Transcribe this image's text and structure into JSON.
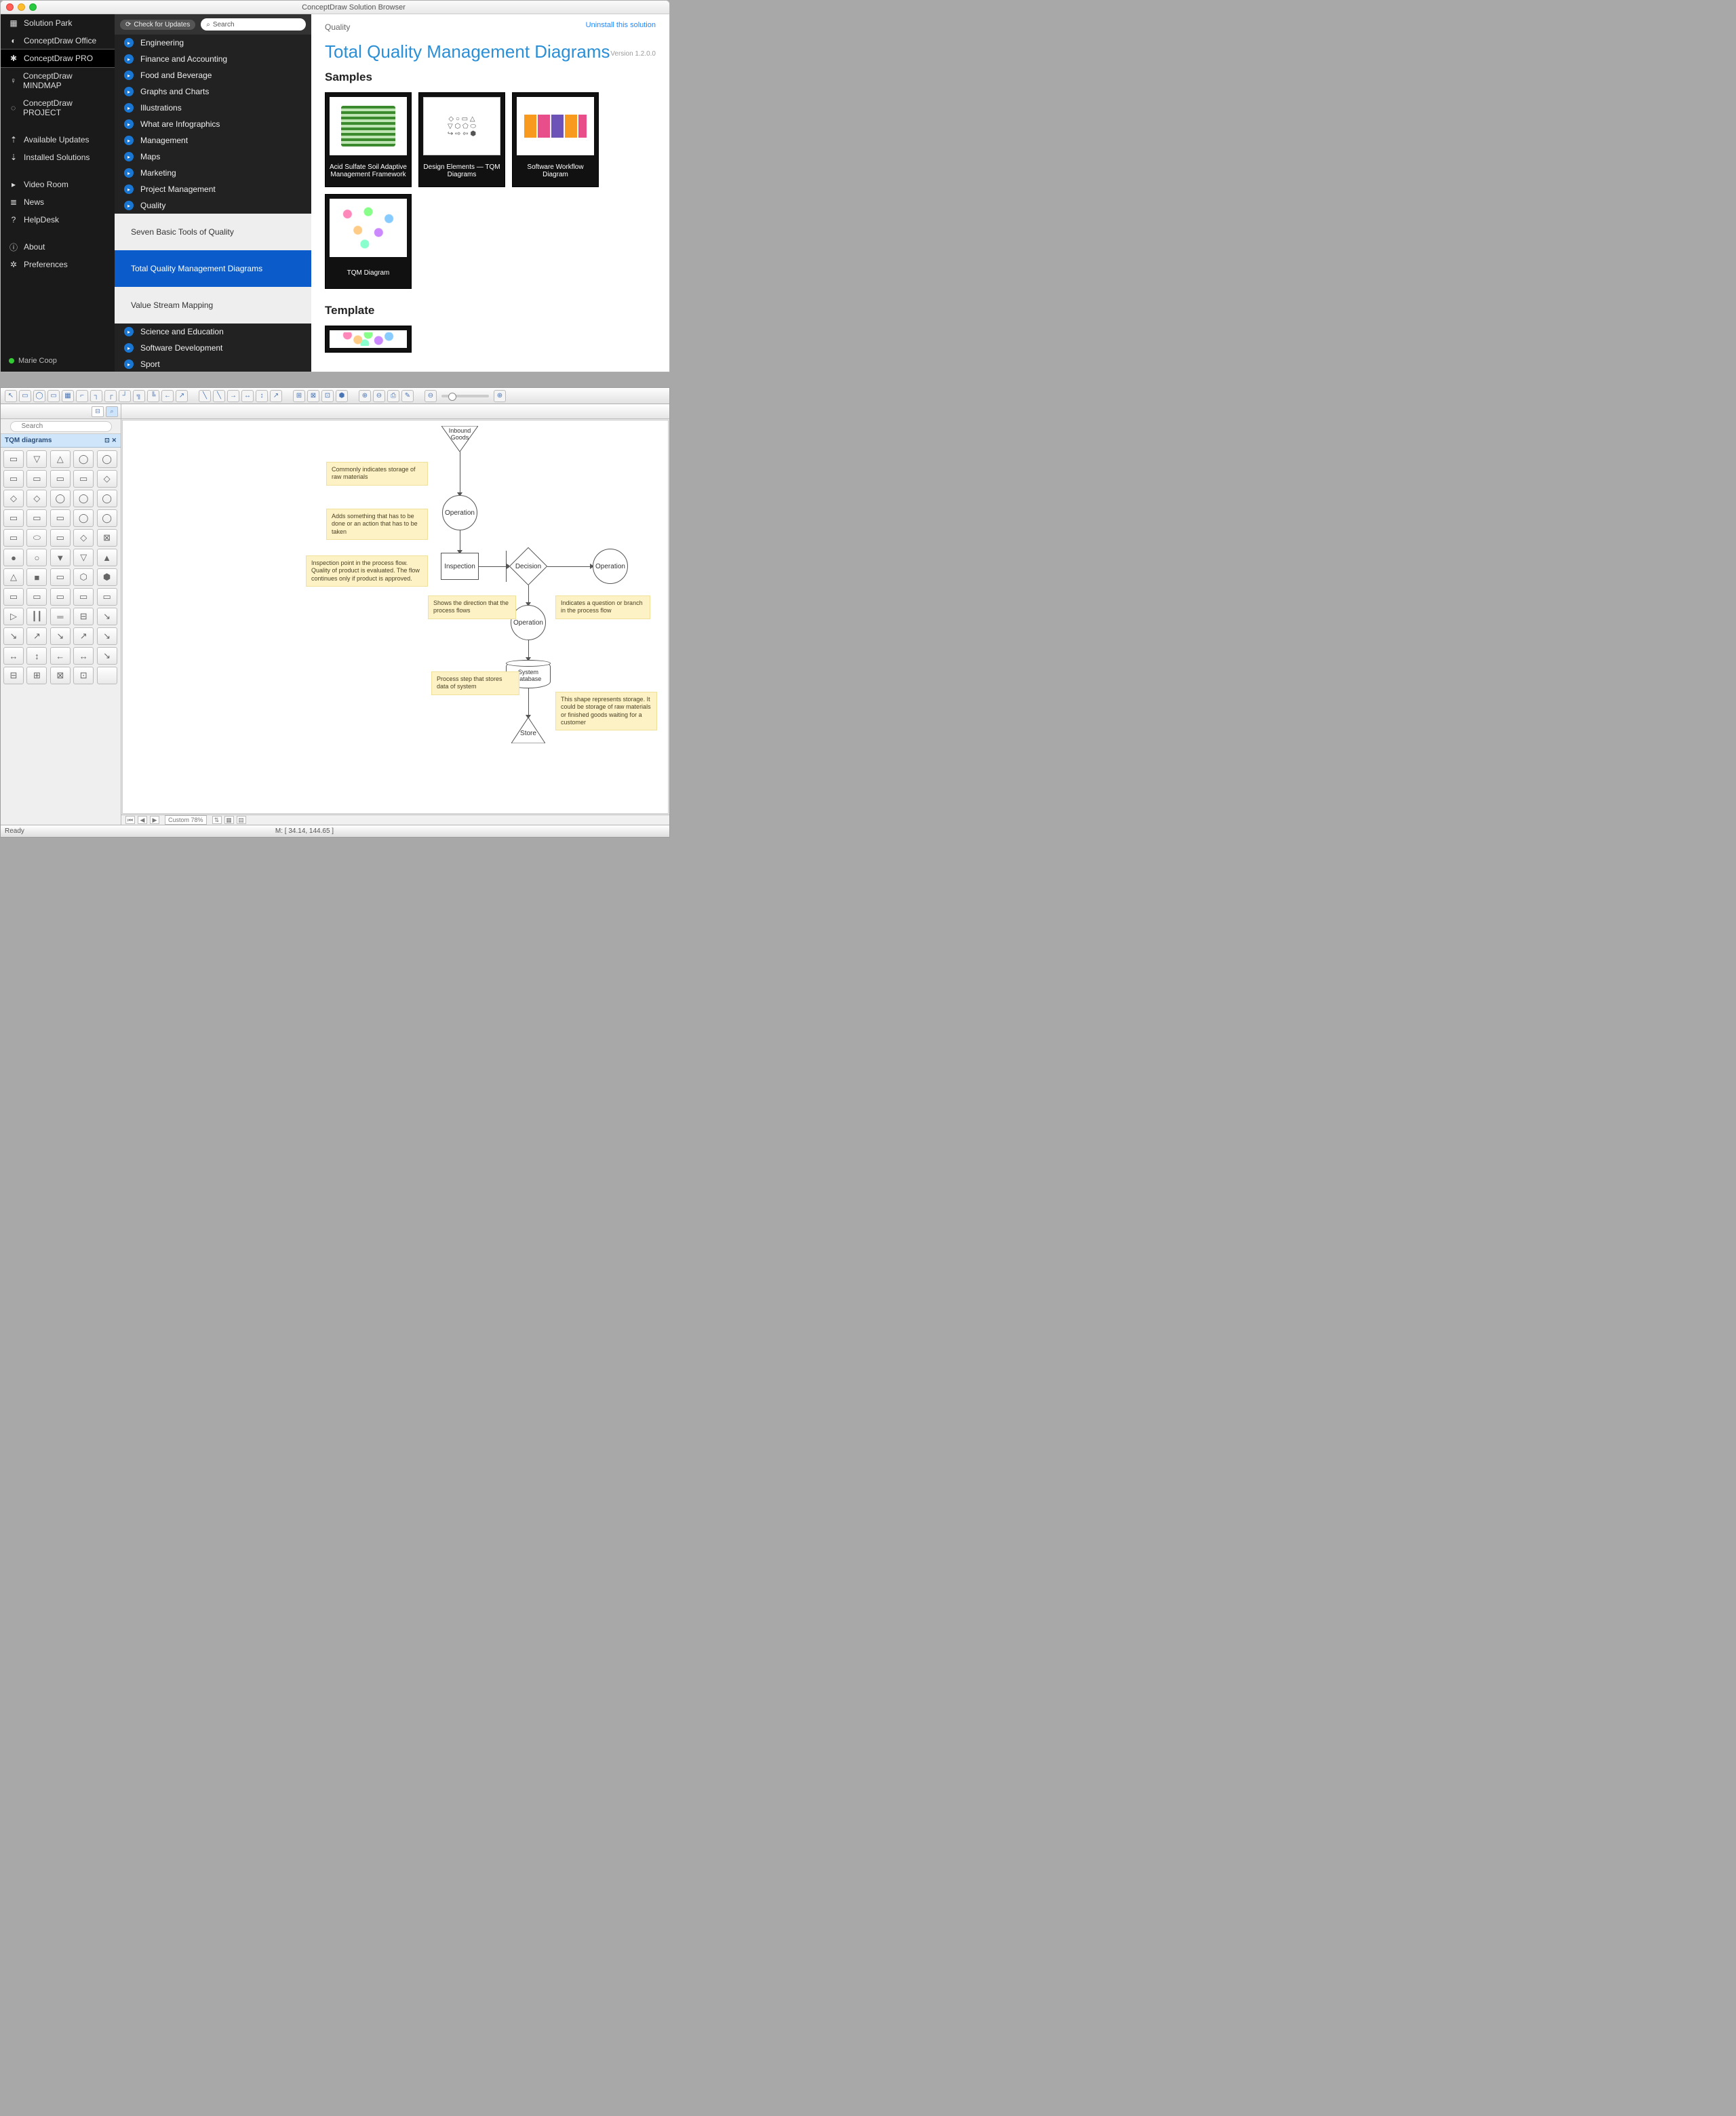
{
  "browser": {
    "window_title": "ConceptDraw Solution Browser",
    "check_updates": "Check for Updates",
    "search_placeholder": "Search",
    "sidebar": {
      "items": [
        {
          "label": "Solution Park",
          "icon": "▦"
        },
        {
          "label": "ConceptDraw Office",
          "icon": "◐"
        },
        {
          "label": "ConceptDraw PRO",
          "icon": "✱",
          "selected": true
        },
        {
          "label": "ConceptDraw MINDMAP",
          "icon": "♀"
        },
        {
          "label": "ConceptDraw PROJECT",
          "icon": "◌"
        }
      ],
      "items2": [
        {
          "label": "Available Updates",
          "icon": "⇡"
        },
        {
          "label": "Installed Solutions",
          "icon": "⇣"
        }
      ],
      "items3": [
        {
          "label": "Video Room",
          "icon": "▸"
        },
        {
          "label": "News",
          "icon": "≣"
        },
        {
          "label": "HelpDesk",
          "icon": "?"
        }
      ],
      "items4": [
        {
          "label": "About",
          "icon": "ⓘ"
        },
        {
          "label": "Preferences",
          "icon": "✲"
        }
      ],
      "user": "Marie Coop"
    },
    "categories": [
      "Engineering",
      "Finance and Accounting",
      "Food and Beverage",
      "Graphs and Charts",
      "Illustrations",
      "What are Infographics",
      "Management",
      "Maps",
      "Marketing",
      "Project Management",
      "Quality"
    ],
    "categories2": [
      "Science and Education",
      "Software Development",
      "Sport"
    ],
    "subs": [
      {
        "label": "Seven Basic Tools of Quality",
        "active": false
      },
      {
        "label": "Total Quality Management Diagrams",
        "active": true
      },
      {
        "label": "Value Stream Mapping",
        "active": false
      }
    ],
    "content": {
      "crumb": "Quality",
      "uninstall": "Uninstall this solution",
      "title": "Total Quality Management Diagrams",
      "version": "Version 1.2.0.0",
      "samples_heading": "Samples",
      "template_heading": "Template",
      "cards": [
        {
          "cap": "Acid Sulfate Soil Adaptive Management Framework",
          "th": "th1"
        },
        {
          "cap": "Design Elements — TQM Diagrams",
          "th": "th2"
        },
        {
          "cap": "Software Workflow Diagram",
          "th": "th3"
        },
        {
          "cap": "TQM Diagram",
          "th": "th4"
        }
      ]
    }
  },
  "editor": {
    "palette_title": "TQM diagrams",
    "palette_search": "Search",
    "palette_glyphs": [
      "▭",
      "▽",
      "△",
      "◯",
      "◯",
      "▭",
      "▭",
      "▭",
      "▭",
      "◇",
      "◇",
      "◇",
      "◯",
      "◯",
      "◯",
      "▭",
      "▭",
      "▭",
      "◯",
      "◯",
      "▭",
      "⬭",
      "▭",
      "◇",
      "⊠",
      "●",
      "○",
      "▼",
      "▽",
      "▲",
      "△",
      "■",
      "▭",
      "⬡",
      "⬢",
      "▭",
      "▭",
      "▭",
      "▭",
      "▭",
      "▷",
      "┃┃",
      "═",
      "⊟",
      "↘",
      "↘",
      "↗",
      "↘",
      "↗",
      "↘",
      "↔",
      "↕",
      "←",
      "↔",
      "↘",
      "⊟",
      "⊞",
      "⊠",
      "⊡",
      " "
    ],
    "statusbar": {
      "ready": "Ready",
      "zoom": "Custom 78%",
      "coords": "M: [ 34.14, 144.65 ]"
    },
    "flow": {
      "inbound": "Inbound\nGoods",
      "operation": "Operation",
      "inspection": "Inspection",
      "decision": "Decision",
      "sysdb": "System\nDatabase",
      "store": "Store",
      "notes": {
        "n1": "Commonly indicates storage of raw materials",
        "n2": "Adds something that has to be done or an action that has to be taken",
        "n3": "Inspection point in the process flow. Quality of product is evaluated. The flow continues only if product is approved.",
        "n4": "Shows the direction that the process flows",
        "n5": "Indicates a question or branch in the process flow",
        "n6": "Process step that stores data of system",
        "n7": "This shape represents storage. It could be storage of raw materials or finished goods waiting for a customer"
      }
    },
    "toolbar_icons": [
      "↖",
      "▭",
      "◯",
      "▭",
      "▦",
      "⌐",
      "┐",
      "┌",
      "┘",
      "╗",
      "╚",
      "←",
      "↗",
      " ",
      "╲",
      "╲",
      "→",
      "↔",
      "↕",
      "↗",
      " ",
      "⊞",
      "⊠",
      "⊡",
      "⬢",
      " ",
      "⊕",
      "⊖",
      "⎙",
      "✎",
      " ",
      "⊖",
      "—",
      "⊕"
    ]
  }
}
